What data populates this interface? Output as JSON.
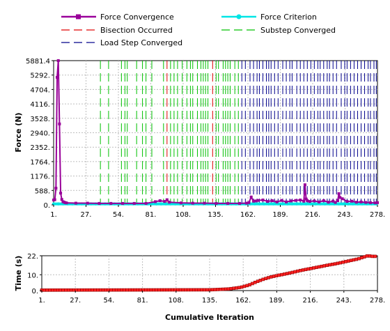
{
  "colors": {
    "force_convergence": "#990099",
    "force_criterion": "#00e5e5",
    "bisection": "#e00000",
    "substep": "#00c000",
    "loadstep": "#00008b",
    "time_line": "#8b0000",
    "time_marker": "#ff2020",
    "grid": "#bdbdbd"
  },
  "legend": {
    "force_convergence": "Force Convergence",
    "force_criterion": "Force Criterion",
    "bisection": "Bisection Occurred",
    "substep": "Substep Converged",
    "loadstep": "Load Step Converged"
  },
  "chart_data": [
    {
      "type": "line",
      "ylabel": "Force (N)",
      "xlabel": "",
      "grid": true,
      "legend_position": "top",
      "xlim": [
        1,
        278
      ],
      "ylim": [
        0,
        5881.4
      ],
      "x_ticks": [
        "1.",
        "27.",
        "54.",
        "81.",
        "108.",
        "135.",
        "162.",
        "189.",
        "216.",
        "243.",
        "278."
      ],
      "y_ticks": [
        "0.",
        "588.",
        "1176.",
        "1764.",
        "2352.",
        "2940.",
        "3528.",
        "4116.",
        "4704.",
        "5292.",
        "5881.4"
      ],
      "series": [
        {
          "name": "Force Convergence",
          "marker": "square",
          "x": [
            1,
            2,
            3,
            4,
            5,
            6,
            7,
            8,
            9,
            10,
            11,
            12,
            20,
            30,
            40,
            50,
            60,
            70,
            80,
            88,
            92,
            96,
            98,
            100,
            110,
            120,
            130,
            140,
            150,
            160,
            166,
            168,
            170,
            172,
            174,
            176,
            180,
            184,
            188,
            192,
            196,
            200,
            204,
            208,
            212,
            215,
            216,
            217,
            218,
            220,
            224,
            228,
            232,
            236,
            240,
            242,
            244,
            245,
            246,
            248,
            252,
            256,
            260,
            264,
            268,
            272,
            276,
            278
          ],
          "y": [
            200,
            210,
            680,
            5200,
            5881.4,
            3300,
            480,
            220,
            130,
            110,
            90,
            80,
            70,
            70,
            60,
            60,
            60,
            60,
            60,
            130,
            170,
            140,
            210,
            110,
            80,
            70,
            70,
            60,
            60,
            60,
            70,
            90,
            320,
            150,
            160,
            180,
            200,
            140,
            170,
            120,
            180,
            120,
            160,
            180,
            200,
            150,
            820,
            240,
            170,
            140,
            160,
            120,
            170,
            110,
            150,
            100,
            170,
            460,
            300,
            250,
            140,
            150,
            110,
            120,
            100,
            90,
            80,
            90
          ]
        },
        {
          "name": "Force Criterion",
          "marker": "circle",
          "x": [
            1,
            278
          ],
          "y": [
            40,
            40
          ]
        }
      ],
      "bisection_occurred": [
        98,
        137
      ],
      "substep_converged": [
        41,
        48,
        59,
        62,
        64,
        72,
        77,
        80,
        85,
        95,
        101,
        104,
        107,
        111,
        115,
        118,
        120,
        124,
        127,
        129,
        131,
        133,
        140,
        142,
        146,
        148,
        150,
        152,
        156,
        159
      ],
      "load_step_converged": [
        162,
        165,
        169,
        172,
        175,
        177,
        180,
        183,
        185,
        187,
        190,
        193,
        197,
        200,
        203,
        205,
        209,
        212,
        215,
        218,
        221,
        224,
        227,
        229,
        232,
        235,
        237,
        240,
        243,
        247,
        250,
        252,
        255,
        258,
        261,
        264,
        267,
        270,
        272,
        275,
        277
      ]
    },
    {
      "type": "line",
      "ylabel": "Time (s)",
      "xlabel": "Cumulative Iteration",
      "grid": true,
      "xlim": [
        1,
        278
      ],
      "ylim": [
        0,
        22
      ],
      "x_ticks": [
        "1.",
        "27.",
        "54.",
        "81.",
        "108.",
        "135.",
        "162.",
        "189.",
        "216.",
        "243.",
        "278."
      ],
      "y_ticks": [
        "0.",
        "10.",
        "22."
      ],
      "series": [
        {
          "name": "Time",
          "marker": "square",
          "x": [
            1,
            140,
            155,
            165,
            172,
            178,
            184,
            190,
            196,
            202,
            208,
            214,
            220,
            226,
            232,
            238,
            244,
            250,
            256,
            262,
            266,
            270,
            274,
            278
          ],
          "y": [
            0.3,
            0.5,
            1.0,
            2.0,
            3.5,
            5.5,
            7.2,
            8.6,
            9.6,
            10.5,
            11.5,
            12.6,
            13.5,
            14.4,
            15.3,
            16.2,
            17.0,
            18.0,
            19.0,
            20.0,
            21.0,
            22.0,
            21.6,
            21.6
          ]
        }
      ]
    }
  ]
}
